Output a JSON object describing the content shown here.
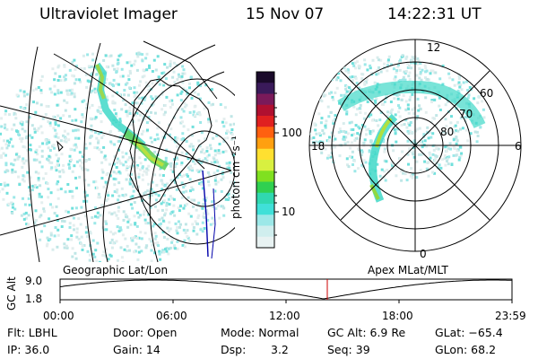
{
  "header": {
    "title": "Ultraviolet Imager",
    "date": "15 Nov 07",
    "time": "14:22:31 UT"
  },
  "colorbar": {
    "unit_label": "photon cm⁻²s⁻¹",
    "ticks": [
      "100",
      "10"
    ],
    "colors": [
      "#1a0a2a",
      "#3a1a5a",
      "#7a1a5a",
      "#b01030",
      "#e02020",
      "#ff6010",
      "#ffa010",
      "#ffe030",
      "#d8f040",
      "#80e020",
      "#30d050",
      "#30d8b0",
      "#40e0d8",
      "#9ce8e8",
      "#d0eeee",
      "#e8f2f2"
    ]
  },
  "left_panel": {
    "caption": "Geographic Lat/Lon"
  },
  "right_panel": {
    "caption": "Apex MLat/MLT",
    "mlt_labels": {
      "top": "12",
      "left": "18",
      "right": "6",
      "bottom": "0"
    },
    "lat_labels": [
      "60",
      "70",
      "80"
    ]
  },
  "altitude_plot": {
    "ylabel": "GC Alt",
    "ymax": "9.0",
    "ymin": "1.8",
    "x_ticks": [
      "00:00",
      "06:00",
      "12:00",
      "18:00",
      "23:59"
    ]
  },
  "info": {
    "filter": "Flt: LBHL",
    "door": "Door: Open",
    "mode": "Mode: Normal",
    "gc_alt": "GC Alt: 6.9 Re",
    "glat": "GLat: −65.4",
    "ip": "IP: 36.0",
    "gain": "Gain: 14",
    "dsp_label": "Dsp:",
    "dsp_value": "3.2",
    "seq": "Seq: 39",
    "glon": "GLon: 68.2"
  }
}
